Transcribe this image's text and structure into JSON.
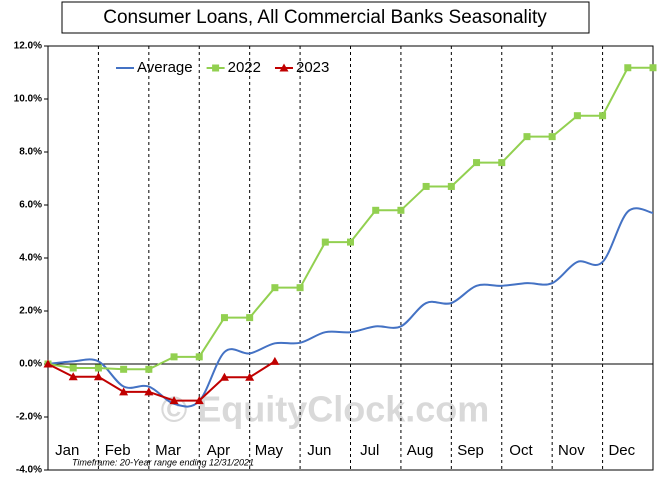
{
  "chart_data": {
    "type": "line",
    "title": "Consumer Loans, All Commercial Banks Seasonality",
    "footnote": "Timeframe: 20-Year range ending 12/31/2021",
    "watermark": "© EquityClock.com",
    "x": [
      0,
      0.5,
      1,
      1.5,
      2,
      2.5,
      3,
      3.5,
      4,
      4.5,
      5,
      5.5,
      6,
      6.5,
      7,
      7.5,
      8,
      8.5,
      9,
      9.5,
      10,
      10.5,
      11,
      11.5,
      12
    ],
    "xlim": [
      0,
      12
    ],
    "xticks": [
      {
        "value": 0.5,
        "label": "Jan"
      },
      {
        "value": 1.5,
        "label": "Feb"
      },
      {
        "value": 2.5,
        "label": "Mar"
      },
      {
        "value": 3.5,
        "label": "Apr"
      },
      {
        "value": 4.5,
        "label": "May"
      },
      {
        "value": 5.5,
        "label": "Jun"
      },
      {
        "value": 6.5,
        "label": "Jul"
      },
      {
        "value": 7.5,
        "label": "Aug"
      },
      {
        "value": 8.5,
        "label": "Sep"
      },
      {
        "value": 9.5,
        "label": "Oct"
      },
      {
        "value": 10.5,
        "label": "Nov"
      },
      {
        "value": 11.5,
        "label": "Dec"
      }
    ],
    "ylim": [
      -4,
      12
    ],
    "yticks": [
      {
        "value": -4,
        "label": "-4.0%"
      },
      {
        "value": -2,
        "label": "-2.0%"
      },
      {
        "value": 0,
        "label": "0.0%"
      },
      {
        "value": 2,
        "label": "2.0%"
      },
      {
        "value": 4,
        "label": "4.0%"
      },
      {
        "value": 6,
        "label": "6.0%"
      },
      {
        "value": 8,
        "label": "8.0%"
      },
      {
        "value": 10,
        "label": "10.0%"
      },
      {
        "value": 12,
        "label": "12.0%"
      }
    ],
    "grid": true,
    "legend": "top-left",
    "series": [
      {
        "name": "Average",
        "color": "#4472c4",
        "marker": "none",
        "smooth": true,
        "values": [
          0,
          0.1,
          0.1,
          -0.85,
          -0.85,
          -1.5,
          -1.4,
          0.45,
          0.4,
          0.78,
          0.8,
          1.2,
          1.2,
          1.42,
          1.42,
          2.3,
          2.3,
          2.95,
          2.95,
          3.05,
          3.05,
          3.85,
          3.85,
          5.75,
          5.7
        ]
      },
      {
        "name": "2022",
        "color": "#92d050",
        "marker": "square",
        "smooth": false,
        "values": [
          0,
          -0.15,
          -0.15,
          -0.2,
          -0.2,
          0.27,
          0.27,
          1.75,
          1.75,
          2.88,
          2.88,
          4.6,
          4.6,
          5.8,
          5.8,
          6.7,
          6.7,
          7.6,
          7.6,
          8.58,
          8.58,
          9.37,
          9.37,
          11.18,
          11.18
        ]
      },
      {
        "name": "2023",
        "color": "#c00000",
        "marker": "triangle",
        "smooth": false,
        "values": [
          0,
          -0.48,
          -0.48,
          -1.05,
          -1.05,
          -1.38,
          -1.38,
          -0.5,
          -0.5,
          0.1,
          null,
          null,
          null,
          null,
          null,
          null,
          null,
          null,
          null,
          null,
          null,
          null,
          null,
          null,
          null
        ]
      }
    ]
  }
}
